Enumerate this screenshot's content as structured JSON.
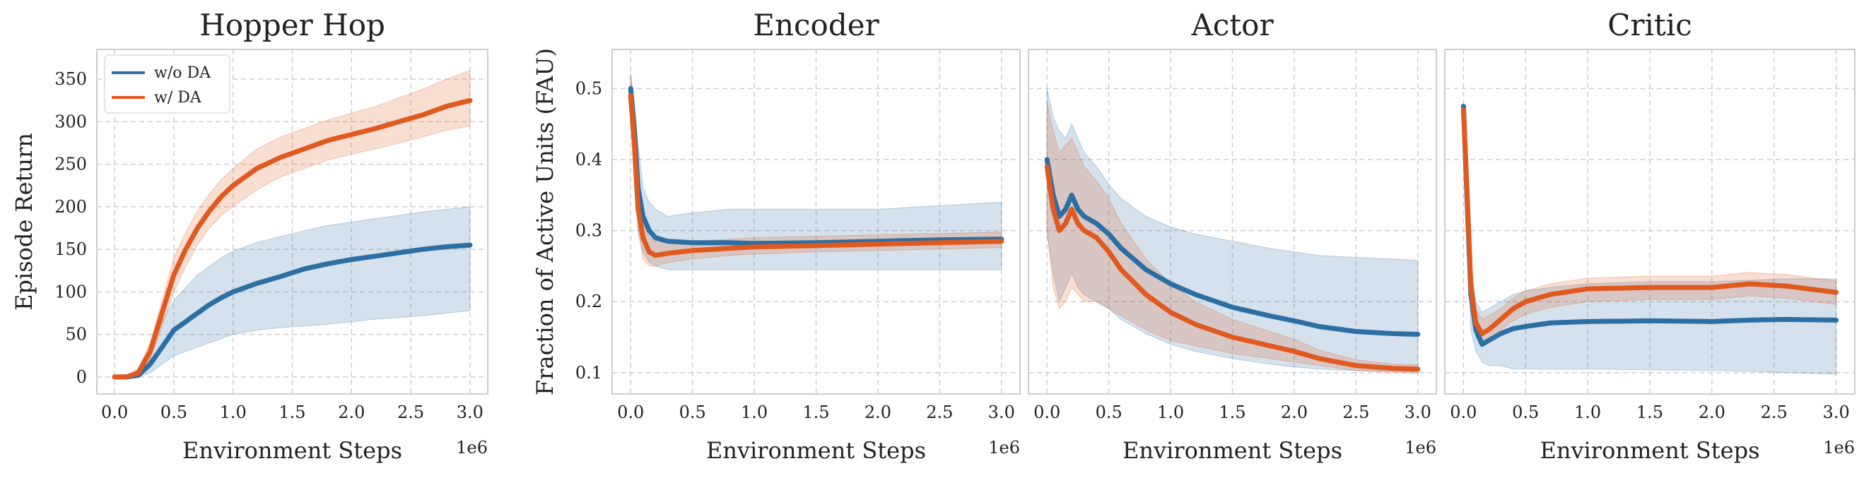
{
  "colors": {
    "series0": "#2c6fa4",
    "series1": "#e0591f",
    "frame": "#cccccc",
    "grid": "#cfcfcf"
  },
  "chart_data": [
    {
      "type": "line",
      "title": "Hopper Hop",
      "xlabel": "Environment Steps",
      "ylabel": "Episode Return",
      "x_multiplier": "1e6",
      "xlim": [
        -0.15,
        3.15
      ],
      "ylim": [
        -20,
        385
      ],
      "xticks": [
        0.0,
        0.5,
        1.0,
        1.5,
        2.0,
        2.5,
        3.0
      ],
      "xtick_labels": [
        "0.0",
        "0.5",
        "1.0",
        "1.5",
        "2.0",
        "2.5",
        "3.0"
      ],
      "yticks": [
        0,
        50,
        100,
        150,
        200,
        250,
        300,
        350
      ],
      "ytick_labels": [
        "0",
        "50",
        "100",
        "150",
        "200",
        "250",
        "300",
        "350"
      ],
      "grid": true,
      "legend": {
        "placement": "top-left",
        "entries": [
          "w/o DA",
          "w/ DA"
        ]
      },
      "series": [
        {
          "name": "w/o DA",
          "x": [
            0.0,
            0.1,
            0.2,
            0.3,
            0.4,
            0.5,
            0.6,
            0.7,
            0.8,
            0.9,
            1.0,
            1.2,
            1.4,
            1.6,
            1.8,
            2.0,
            2.2,
            2.4,
            2.6,
            2.8,
            3.0
          ],
          "y": [
            0,
            0,
            2,
            15,
            35,
            55,
            65,
            75,
            85,
            93,
            100,
            110,
            118,
            127,
            133,
            138,
            142,
            146,
            150,
            153,
            155
          ],
          "lower": [
            0,
            0,
            0,
            5,
            15,
            25,
            30,
            35,
            40,
            45,
            50,
            55,
            58,
            60,
            62,
            65,
            68,
            70,
            72,
            75,
            78
          ],
          "upper": [
            0,
            0,
            8,
            35,
            65,
            90,
            105,
            120,
            130,
            140,
            148,
            158,
            165,
            172,
            178,
            182,
            186,
            190,
            194,
            197,
            200
          ]
        },
        {
          "name": "w/ DA",
          "x": [
            0.0,
            0.1,
            0.2,
            0.3,
            0.4,
            0.5,
            0.6,
            0.7,
            0.8,
            0.9,
            1.0,
            1.2,
            1.4,
            1.6,
            1.8,
            2.0,
            2.2,
            2.4,
            2.6,
            2.8,
            3.0
          ],
          "y": [
            0,
            0,
            5,
            30,
            75,
            120,
            150,
            175,
            195,
            212,
            225,
            245,
            258,
            268,
            278,
            285,
            292,
            300,
            308,
            318,
            325
          ],
          "lower": [
            0,
            0,
            2,
            20,
            60,
            100,
            130,
            155,
            175,
            190,
            200,
            220,
            235,
            245,
            255,
            262,
            268,
            275,
            282,
            290,
            295
          ],
          "upper": [
            0,
            0,
            10,
            40,
            90,
            140,
            170,
            195,
            215,
            232,
            245,
            268,
            282,
            292,
            302,
            310,
            318,
            328,
            338,
            350,
            360
          ]
        }
      ]
    },
    {
      "type": "line",
      "title": "Encoder",
      "xlabel": "Environment Steps",
      "ylabel": "Fraction of Active Units (FAU)",
      "x_multiplier": "1e6",
      "xlim": [
        -0.15,
        3.15
      ],
      "ylim": [
        0.07,
        0.555
      ],
      "xticks": [
        0.0,
        0.5,
        1.0,
        1.5,
        2.0,
        2.5,
        3.0
      ],
      "xtick_labels": [
        "0.0",
        "0.5",
        "1.0",
        "1.5",
        "2.0",
        "2.5",
        "3.0"
      ],
      "yticks": [
        0.1,
        0.2,
        0.3,
        0.4,
        0.5
      ],
      "ytick_labels": [
        "0.1",
        "0.2",
        "0.3",
        "0.4",
        "0.5"
      ],
      "grid": true,
      "series": [
        {
          "x": [
            0.0,
            0.03,
            0.06,
            0.1,
            0.15,
            0.2,
            0.3,
            0.5,
            0.8,
            1.0,
            1.5,
            2.0,
            2.5,
            3.0
          ],
          "y": [
            0.5,
            0.44,
            0.36,
            0.32,
            0.3,
            0.29,
            0.285,
            0.283,
            0.283,
            0.282,
            0.283,
            0.285,
            0.287,
            0.288
          ],
          "lower": [
            0.48,
            0.4,
            0.3,
            0.27,
            0.255,
            0.25,
            0.245,
            0.245,
            0.245,
            0.245,
            0.245,
            0.245,
            0.245,
            0.245
          ],
          "upper": [
            0.52,
            0.48,
            0.42,
            0.36,
            0.34,
            0.33,
            0.32,
            0.325,
            0.33,
            0.33,
            0.33,
            0.33,
            0.335,
            0.34
          ]
        },
        {
          "x": [
            0.0,
            0.03,
            0.06,
            0.1,
            0.15,
            0.2,
            0.3,
            0.5,
            0.8,
            1.0,
            1.5,
            2.0,
            2.5,
            3.0
          ],
          "y": [
            0.49,
            0.42,
            0.33,
            0.29,
            0.27,
            0.265,
            0.268,
            0.272,
            0.275,
            0.277,
            0.279,
            0.281,
            0.283,
            0.285
          ],
          "lower": [
            0.46,
            0.38,
            0.3,
            0.26,
            0.25,
            0.25,
            0.255,
            0.26,
            0.265,
            0.267,
            0.27,
            0.272,
            0.274,
            0.276
          ],
          "upper": [
            0.52,
            0.46,
            0.37,
            0.31,
            0.29,
            0.285,
            0.285,
            0.285,
            0.288,
            0.29,
            0.292,
            0.294,
            0.296,
            0.298
          ]
        }
      ]
    },
    {
      "type": "line",
      "title": "Actor",
      "xlabel": "Environment Steps",
      "x_multiplier": "1e6",
      "xlim": [
        -0.15,
        3.15
      ],
      "ylim": [
        0.07,
        0.555
      ],
      "xticks": [
        0.0,
        0.5,
        1.0,
        1.5,
        2.0,
        2.5,
        3.0
      ],
      "xtick_labels": [
        "0.0",
        "0.5",
        "1.0",
        "1.5",
        "2.0",
        "2.5",
        "3.0"
      ],
      "grid": true,
      "series": [
        {
          "x": [
            0.0,
            0.05,
            0.1,
            0.15,
            0.2,
            0.25,
            0.3,
            0.4,
            0.5,
            0.6,
            0.8,
            1.0,
            1.2,
            1.5,
            1.8,
            2.0,
            2.2,
            2.5,
            2.8,
            3.0
          ],
          "y": [
            0.4,
            0.35,
            0.32,
            0.33,
            0.35,
            0.33,
            0.32,
            0.31,
            0.295,
            0.275,
            0.245,
            0.225,
            0.21,
            0.192,
            0.18,
            0.173,
            0.165,
            0.158,
            0.155,
            0.154
          ],
          "lower": [
            0.3,
            0.24,
            0.2,
            0.22,
            0.24,
            0.22,
            0.21,
            0.2,
            0.19,
            0.175,
            0.155,
            0.14,
            0.13,
            0.12,
            0.112,
            0.108,
            0.105,
            0.103,
            0.102,
            0.101
          ],
          "upper": [
            0.5,
            0.46,
            0.44,
            0.43,
            0.45,
            0.43,
            0.41,
            0.39,
            0.365,
            0.345,
            0.32,
            0.305,
            0.295,
            0.285,
            0.275,
            0.27,
            0.265,
            0.262,
            0.26,
            0.258
          ]
        },
        {
          "x": [
            0.0,
            0.05,
            0.1,
            0.15,
            0.2,
            0.25,
            0.3,
            0.4,
            0.5,
            0.6,
            0.8,
            1.0,
            1.2,
            1.5,
            1.8,
            2.0,
            2.2,
            2.5,
            2.8,
            3.0
          ],
          "y": [
            0.39,
            0.33,
            0.3,
            0.31,
            0.33,
            0.31,
            0.3,
            0.29,
            0.27,
            0.245,
            0.21,
            0.185,
            0.168,
            0.15,
            0.138,
            0.13,
            0.12,
            0.11,
            0.106,
            0.105
          ],
          "lower": [
            0.3,
            0.22,
            0.19,
            0.2,
            0.22,
            0.21,
            0.2,
            0.2,
            0.19,
            0.18,
            0.16,
            0.145,
            0.138,
            0.127,
            0.12,
            0.115,
            0.11,
            0.103,
            0.1,
            0.099
          ],
          "upper": [
            0.48,
            0.44,
            0.41,
            0.42,
            0.43,
            0.41,
            0.39,
            0.37,
            0.345,
            0.31,
            0.26,
            0.225,
            0.2,
            0.175,
            0.158,
            0.147,
            0.132,
            0.118,
            0.112,
            0.111
          ]
        }
      ]
    },
    {
      "type": "line",
      "title": "Critic",
      "xlabel": "Environment Steps",
      "x_multiplier": "1e6",
      "xlim": [
        -0.15,
        3.15
      ],
      "ylim": [
        0.07,
        0.555
      ],
      "xticks": [
        0.0,
        0.5,
        1.0,
        1.5,
        2.0,
        2.5,
        3.0
      ],
      "xtick_labels": [
        "0.0",
        "0.5",
        "1.0",
        "1.5",
        "2.0",
        "2.5",
        "3.0"
      ],
      "grid": true,
      "series": [
        {
          "x": [
            0.0,
            0.03,
            0.06,
            0.1,
            0.15,
            0.2,
            0.3,
            0.4,
            0.5,
            0.7,
            1.0,
            1.5,
            2.0,
            2.3,
            2.6,
            3.0
          ],
          "y": [
            0.475,
            0.34,
            0.21,
            0.16,
            0.14,
            0.145,
            0.155,
            0.162,
            0.165,
            0.17,
            0.172,
            0.173,
            0.172,
            0.174,
            0.175,
            0.174
          ],
          "lower": [
            0.47,
            0.3,
            0.16,
            0.13,
            0.115,
            0.11,
            0.11,
            0.105,
            0.105,
            0.105,
            0.105,
            0.104,
            0.103,
            0.102,
            0.1,
            0.098
          ],
          "upper": [
            0.48,
            0.38,
            0.25,
            0.2,
            0.185,
            0.19,
            0.2,
            0.21,
            0.215,
            0.22,
            0.225,
            0.228,
            0.228,
            0.23,
            0.232,
            0.232
          ]
        },
        {
          "x": [
            0.0,
            0.03,
            0.06,
            0.1,
            0.15,
            0.2,
            0.3,
            0.4,
            0.5,
            0.7,
            1.0,
            1.5,
            2.0,
            2.3,
            2.6,
            3.0
          ],
          "y": [
            0.47,
            0.35,
            0.22,
            0.17,
            0.155,
            0.16,
            0.175,
            0.19,
            0.2,
            0.21,
            0.218,
            0.22,
            0.22,
            0.225,
            0.222,
            0.213
          ],
          "lower": [
            0.465,
            0.32,
            0.19,
            0.15,
            0.14,
            0.145,
            0.16,
            0.173,
            0.182,
            0.192,
            0.2,
            0.203,
            0.203,
            0.208,
            0.205,
            0.196
          ],
          "upper": [
            0.475,
            0.38,
            0.25,
            0.19,
            0.175,
            0.18,
            0.19,
            0.205,
            0.215,
            0.225,
            0.233,
            0.236,
            0.236,
            0.241,
            0.238,
            0.229
          ]
        }
      ]
    }
  ]
}
